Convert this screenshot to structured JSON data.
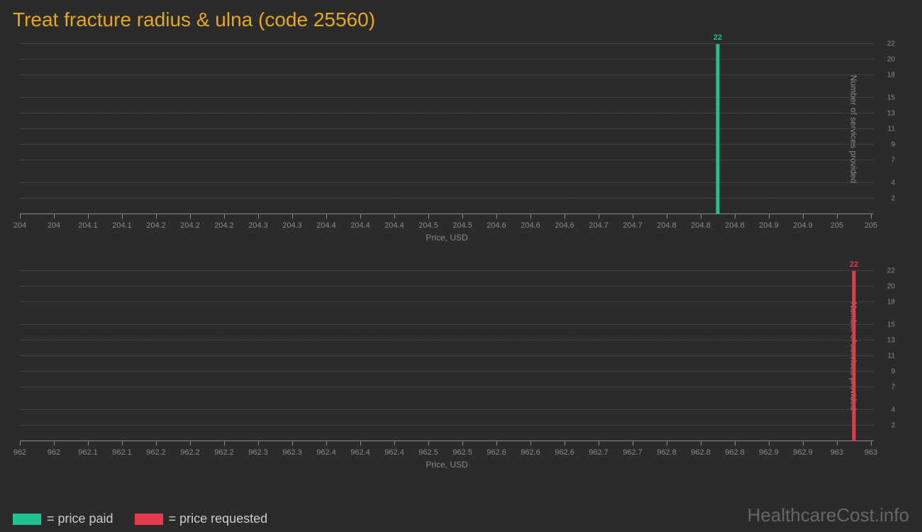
{
  "title": "Treat fracture radius & ulna (code 25560)",
  "background_color": "#2b2b2b",
  "title_color": "#e6a817",
  "grid_color": "#555555",
  "axis_color": "#888888",
  "watermark": "HealthcareCost.info",
  "legend": [
    {
      "label": "= price paid",
      "color": "#1fc18f"
    },
    {
      "label": "= price requested",
      "color": "#e6394e"
    }
  ],
  "charts": [
    {
      "type": "bar",
      "xlabel": "Price, USD",
      "ylabel": "Number of services provided",
      "xlim": [
        204,
        205
      ],
      "ylim": [
        0,
        22
      ],
      "xticks": [
        204,
        204,
        204.1,
        204.1,
        204.2,
        204.2,
        204.2,
        204.3,
        204.3,
        204.4,
        204.4,
        204.4,
        204.5,
        204.5,
        204.6,
        204.6,
        204.6,
        204.7,
        204.7,
        204.8,
        204.8,
        204.8,
        204.9,
        204.9,
        205,
        205
      ],
      "yticks": [
        2,
        4,
        7,
        9,
        11,
        13,
        15,
        18,
        20,
        22
      ],
      "bars": [
        {
          "x": 204.82,
          "value": 22,
          "color": "#1fc18f",
          "label": "22",
          "label_color": "#1fc18f"
        }
      ]
    },
    {
      "type": "bar",
      "xlabel": "Price, USD",
      "ylabel": "Number of services provided",
      "xlim": [
        962,
        963
      ],
      "ylim": [
        0,
        22
      ],
      "xticks": [
        962,
        962,
        962.1,
        962.1,
        962.2,
        962.2,
        962.2,
        962.3,
        962.3,
        962.4,
        962.4,
        962.4,
        962.5,
        962.5,
        962.6,
        962.6,
        962.6,
        962.7,
        962.7,
        962.8,
        962.8,
        962.8,
        962.9,
        962.9,
        963,
        963
      ],
      "yticks": [
        2,
        4,
        7,
        9,
        11,
        13,
        15,
        18,
        20,
        22
      ],
      "bars": [
        {
          "x": 962.98,
          "value": 22,
          "color": "#e6394e",
          "label": "22",
          "label_color": "#e6394e"
        }
      ]
    }
  ]
}
